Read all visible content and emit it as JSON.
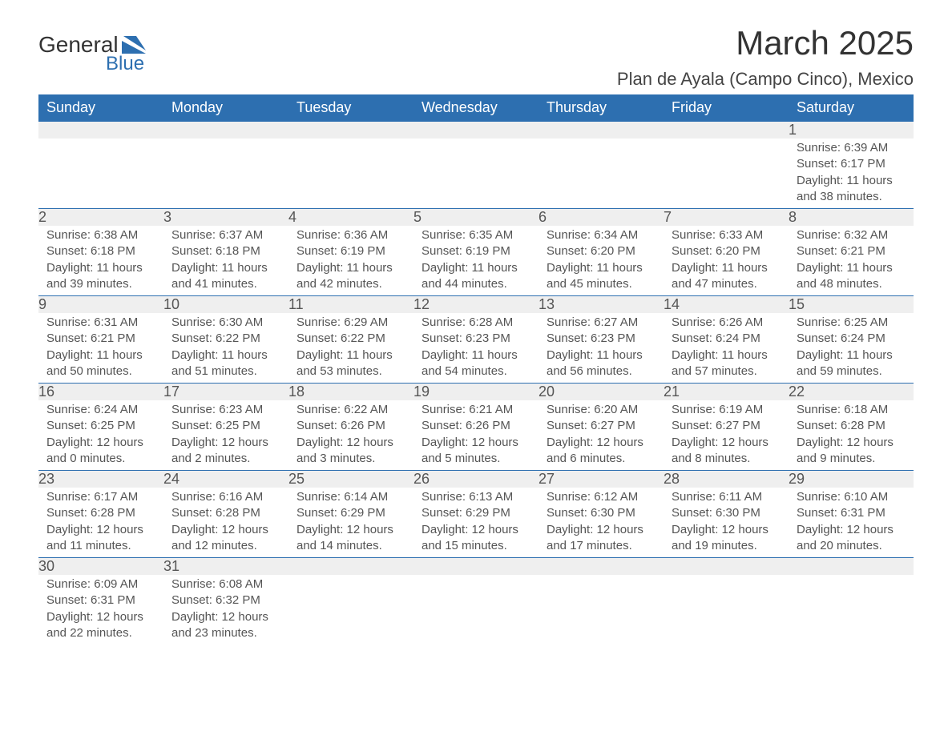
{
  "brand": {
    "name_part1": "General",
    "name_part2": "Blue",
    "flag_color": "#2d6fb0"
  },
  "title": "March 2025",
  "location": "Plan de Ayala (Campo Cinco), Mexico",
  "colors": {
    "header_bg": "#2d6fb0",
    "header_text": "#ffffff",
    "daynum_bg": "#efefef",
    "text": "#555555",
    "row_border": "#2d6fb0"
  },
  "day_headers": [
    "Sunday",
    "Monday",
    "Tuesday",
    "Wednesday",
    "Thursday",
    "Friday",
    "Saturday"
  ],
  "labels": {
    "sunrise": "Sunrise: ",
    "sunset": "Sunset: ",
    "daylight": "Daylight: "
  },
  "weeks": [
    [
      null,
      null,
      null,
      null,
      null,
      null,
      {
        "n": "1",
        "sr": "6:39 AM",
        "ss": "6:17 PM",
        "dl": "11 hours and 38 minutes."
      }
    ],
    [
      {
        "n": "2",
        "sr": "6:38 AM",
        "ss": "6:18 PM",
        "dl": "11 hours and 39 minutes."
      },
      {
        "n": "3",
        "sr": "6:37 AM",
        "ss": "6:18 PM",
        "dl": "11 hours and 41 minutes."
      },
      {
        "n": "4",
        "sr": "6:36 AM",
        "ss": "6:19 PM",
        "dl": "11 hours and 42 minutes."
      },
      {
        "n": "5",
        "sr": "6:35 AM",
        "ss": "6:19 PM",
        "dl": "11 hours and 44 minutes."
      },
      {
        "n": "6",
        "sr": "6:34 AM",
        "ss": "6:20 PM",
        "dl": "11 hours and 45 minutes."
      },
      {
        "n": "7",
        "sr": "6:33 AM",
        "ss": "6:20 PM",
        "dl": "11 hours and 47 minutes."
      },
      {
        "n": "8",
        "sr": "6:32 AM",
        "ss": "6:21 PM",
        "dl": "11 hours and 48 minutes."
      }
    ],
    [
      {
        "n": "9",
        "sr": "6:31 AM",
        "ss": "6:21 PM",
        "dl": "11 hours and 50 minutes."
      },
      {
        "n": "10",
        "sr": "6:30 AM",
        "ss": "6:22 PM",
        "dl": "11 hours and 51 minutes."
      },
      {
        "n": "11",
        "sr": "6:29 AM",
        "ss": "6:22 PM",
        "dl": "11 hours and 53 minutes."
      },
      {
        "n": "12",
        "sr": "6:28 AM",
        "ss": "6:23 PM",
        "dl": "11 hours and 54 minutes."
      },
      {
        "n": "13",
        "sr": "6:27 AM",
        "ss": "6:23 PM",
        "dl": "11 hours and 56 minutes."
      },
      {
        "n": "14",
        "sr": "6:26 AM",
        "ss": "6:24 PM",
        "dl": "11 hours and 57 minutes."
      },
      {
        "n": "15",
        "sr": "6:25 AM",
        "ss": "6:24 PM",
        "dl": "11 hours and 59 minutes."
      }
    ],
    [
      {
        "n": "16",
        "sr": "6:24 AM",
        "ss": "6:25 PM",
        "dl": "12 hours and 0 minutes."
      },
      {
        "n": "17",
        "sr": "6:23 AM",
        "ss": "6:25 PM",
        "dl": "12 hours and 2 minutes."
      },
      {
        "n": "18",
        "sr": "6:22 AM",
        "ss": "6:26 PM",
        "dl": "12 hours and 3 minutes."
      },
      {
        "n": "19",
        "sr": "6:21 AM",
        "ss": "6:26 PM",
        "dl": "12 hours and 5 minutes."
      },
      {
        "n": "20",
        "sr": "6:20 AM",
        "ss": "6:27 PM",
        "dl": "12 hours and 6 minutes."
      },
      {
        "n": "21",
        "sr": "6:19 AM",
        "ss": "6:27 PM",
        "dl": "12 hours and 8 minutes."
      },
      {
        "n": "22",
        "sr": "6:18 AM",
        "ss": "6:28 PM",
        "dl": "12 hours and 9 minutes."
      }
    ],
    [
      {
        "n": "23",
        "sr": "6:17 AM",
        "ss": "6:28 PM",
        "dl": "12 hours and 11 minutes."
      },
      {
        "n": "24",
        "sr": "6:16 AM",
        "ss": "6:28 PM",
        "dl": "12 hours and 12 minutes."
      },
      {
        "n": "25",
        "sr": "6:14 AM",
        "ss": "6:29 PM",
        "dl": "12 hours and 14 minutes."
      },
      {
        "n": "26",
        "sr": "6:13 AM",
        "ss": "6:29 PM",
        "dl": "12 hours and 15 minutes."
      },
      {
        "n": "27",
        "sr": "6:12 AM",
        "ss": "6:30 PM",
        "dl": "12 hours and 17 minutes."
      },
      {
        "n": "28",
        "sr": "6:11 AM",
        "ss": "6:30 PM",
        "dl": "12 hours and 19 minutes."
      },
      {
        "n": "29",
        "sr": "6:10 AM",
        "ss": "6:31 PM",
        "dl": "12 hours and 20 minutes."
      }
    ],
    [
      {
        "n": "30",
        "sr": "6:09 AM",
        "ss": "6:31 PM",
        "dl": "12 hours and 22 minutes."
      },
      {
        "n": "31",
        "sr": "6:08 AM",
        "ss": "6:32 PM",
        "dl": "12 hours and 23 minutes."
      },
      null,
      null,
      null,
      null,
      null
    ]
  ]
}
